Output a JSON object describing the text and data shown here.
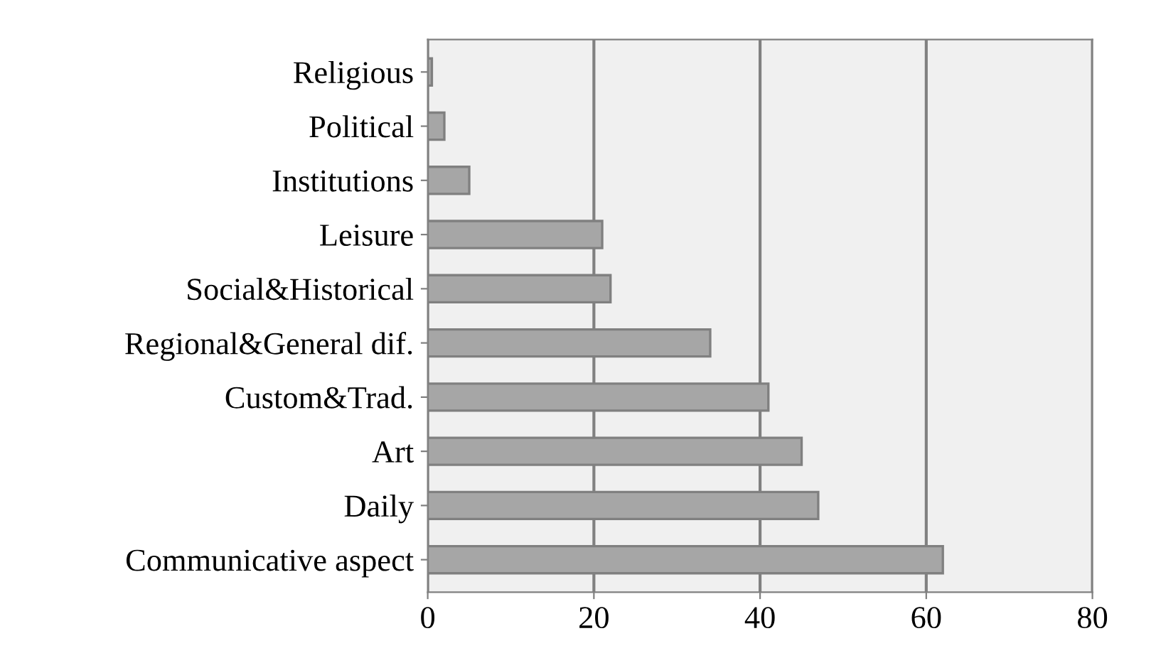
{
  "chart_data": {
    "type": "bar",
    "orientation": "horizontal",
    "categories": [
      "Religious",
      "Political",
      "Institutions",
      "Leisure",
      "Social&Historical",
      "Regional&General dif.",
      "Custom&Trad.",
      "Art",
      "Daily",
      "Communicative aspect"
    ],
    "values": [
      0.5,
      2,
      5,
      21,
      22,
      34,
      41,
      45,
      47,
      62
    ],
    "color": "#a6a6a6",
    "xlim": [
      0,
      80
    ],
    "xticks": [
      0,
      20,
      40,
      60,
      80
    ],
    "grid": "x"
  }
}
